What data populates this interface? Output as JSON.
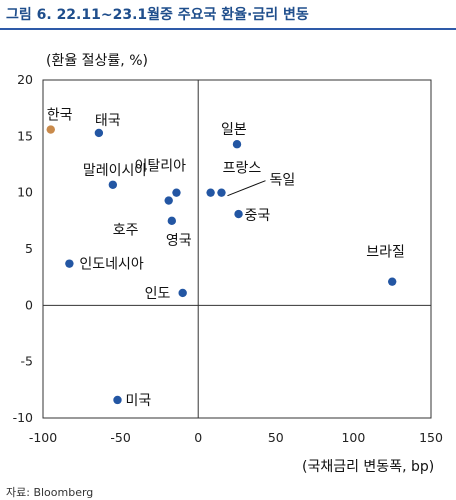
{
  "title": "그림 6. 22.11~23.1월중 주요국 환율·금리 변동",
  "source": "자료: Bloomberg",
  "colors": {
    "title": "#1f4e8c",
    "point": "#2356a3",
    "highlight": "#c98a4b",
    "axis": "#333333",
    "leader": "#111111"
  },
  "chart_data": {
    "type": "scatter",
    "xlabel": "(국채금리 변동폭, bp)",
    "ylabel": "(환율 절상률, %)",
    "xlim": [
      -100,
      150
    ],
    "ylim": [
      -10,
      20
    ],
    "xticks": [
      -100,
      -50,
      0,
      50,
      100,
      150
    ],
    "yticks": [
      -10,
      -5,
      0,
      5,
      10,
      15,
      20
    ],
    "xtick_labels": [
      "-100",
      "-50",
      "0",
      "50",
      "100",
      "150"
    ],
    "ytick_labels": [
      "-10",
      "-5",
      "0",
      "5",
      "10",
      "15",
      "20"
    ],
    "grid": false,
    "points": [
      {
        "name": "한국",
        "x": -95,
        "y": 15.6,
        "highlight": true
      },
      {
        "name": "태국",
        "x": -64,
        "y": 15.3
      },
      {
        "name": "일본",
        "x": 25,
        "y": 14.3
      },
      {
        "name": "말레이시아",
        "x": -55,
        "y": 10.7
      },
      {
        "name": "이탈리아",
        "x": -14,
        "y": 10.0
      },
      {
        "name": "프랑스",
        "x": 8,
        "y": 10.0
      },
      {
        "name": "독일",
        "x": 15,
        "y": 10.0
      },
      {
        "name": "호주",
        "x": -19,
        "y": 9.3
      },
      {
        "name": "중국",
        "x": 26,
        "y": 8.1
      },
      {
        "name": "영국",
        "x": -17,
        "y": 7.5
      },
      {
        "name": "인도네시아",
        "x": -83,
        "y": 3.7
      },
      {
        "name": "브라질",
        "x": 125,
        "y": 2.1
      },
      {
        "name": "인도",
        "x": -10,
        "y": 1.1
      },
      {
        "name": "미국",
        "x": -52,
        "y": -8.4
      }
    ]
  }
}
